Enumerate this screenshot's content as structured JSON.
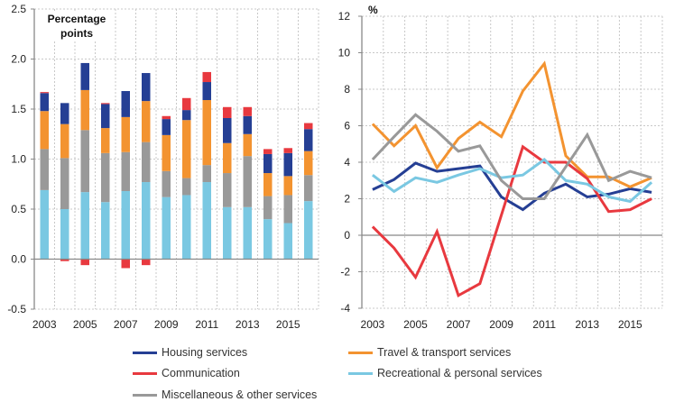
{
  "chart_data": [
    {
      "type": "bar",
      "stacked": true,
      "title": "",
      "unit_label": "Percentage points",
      "xlabel": "",
      "ylabel": "Percentage points",
      "ylim": [
        -0.5,
        2.5
      ],
      "yticks": [
        "2.5",
        "2.0",
        "1.5",
        "1.0",
        "0.5",
        "0.0",
        "-0.5"
      ],
      "ytick_values": [
        2.5,
        2.0,
        1.5,
        1.0,
        0.5,
        0.0,
        -0.5
      ],
      "categories": [
        "2003",
        "2004",
        "2005",
        "2006",
        "2007",
        "2008",
        "2009",
        "2010",
        "2011",
        "2012",
        "2013",
        "2014",
        "2015",
        "2016"
      ],
      "xtick_labels": [
        "2003",
        "2005",
        "2007",
        "2009",
        "2011",
        "2013",
        "2015"
      ],
      "grid": true,
      "series": [
        {
          "name": "Recreational & personal services",
          "color": "#7ac8e2",
          "values": [
            0.69,
            0.5,
            0.67,
            0.57,
            0.68,
            0.77,
            0.62,
            0.64,
            0.77,
            0.52,
            0.52,
            0.4,
            0.36,
            0.58
          ]
        },
        {
          "name": "Miscellaneous & other services",
          "color": "#999999",
          "values": [
            0.41,
            0.51,
            0.62,
            0.49,
            0.39,
            0.4,
            0.26,
            0.17,
            0.17,
            0.34,
            0.51,
            0.23,
            0.28,
            0.26
          ]
        },
        {
          "name": "Travel & transport services",
          "color": "#f39330",
          "values": [
            0.38,
            0.34,
            0.4,
            0.25,
            0.35,
            0.41,
            0.36,
            0.58,
            0.65,
            0.3,
            0.22,
            0.23,
            0.19,
            0.24
          ]
        },
        {
          "name": "Housing services",
          "color": "#253f94",
          "values": [
            0.18,
            0.21,
            0.27,
            0.24,
            0.26,
            0.28,
            0.16,
            0.1,
            0.18,
            0.25,
            0.18,
            0.19,
            0.23,
            0.22
          ]
        },
        {
          "name": "Communication",
          "color": "#e8393f",
          "values": [
            0.01,
            -0.02,
            -0.06,
            0.01,
            -0.09,
            -0.06,
            0.03,
            0.12,
            0.1,
            0.11,
            0.09,
            0.05,
            0.05,
            0.06
          ]
        }
      ]
    },
    {
      "type": "line",
      "title": "",
      "unit_label": "%",
      "xlabel": "",
      "ylabel": "%",
      "ylim": [
        -4,
        12
      ],
      "yticks": [
        "12",
        "10",
        "8",
        "6",
        "4",
        "2",
        "0",
        "-2",
        "-4"
      ],
      "ytick_values": [
        12,
        10,
        8,
        6,
        4,
        2,
        0,
        -2,
        -4
      ],
      "x": [
        "2003",
        "2004",
        "2005",
        "2006",
        "2007",
        "2008",
        "2009",
        "2010",
        "2011",
        "2012",
        "2013",
        "2014",
        "2015",
        "2016"
      ],
      "xtick_labels": [
        "2003",
        "2005",
        "2007",
        "2009",
        "2011",
        "2013",
        "2015"
      ],
      "grid": true,
      "series": [
        {
          "name": "Housing services",
          "color": "#253f94",
          "values": [
            2.5,
            3.05,
            3.95,
            3.5,
            3.65,
            3.8,
            2.1,
            1.4,
            2.3,
            2.8,
            2.1,
            2.25,
            2.55,
            2.35
          ]
        },
        {
          "name": "Travel & transport services",
          "color": "#f39330",
          "values": [
            6.1,
            4.9,
            6.0,
            3.7,
            5.3,
            6.2,
            5.4,
            7.9,
            9.4,
            4.35,
            3.2,
            3.2,
            2.65,
            3.15
          ]
        },
        {
          "name": "Communication",
          "color": "#e8393f",
          "values": [
            0.47,
            -0.7,
            -2.3,
            0.2,
            -3.3,
            -2.65,
            1.1,
            4.85,
            4.0,
            4.0,
            3.1,
            1.3,
            1.4,
            2.0
          ]
        },
        {
          "name": "Recreational & personal services",
          "color": "#7ac8e2",
          "values": [
            3.3,
            2.4,
            3.15,
            2.9,
            3.3,
            3.65,
            3.15,
            3.3,
            4.15,
            3.0,
            2.8,
            2.1,
            1.85,
            2.9
          ]
        },
        {
          "name": "Miscellaneous & other services",
          "color": "#999999",
          "values": [
            4.15,
            5.4,
            6.6,
            5.7,
            4.6,
            4.9,
            3.0,
            2.0,
            2.0,
            3.75,
            5.5,
            3.0,
            3.5,
            3.15
          ]
        }
      ]
    }
  ],
  "legend": {
    "placement": "bottom",
    "items": [
      {
        "label": "Housing services",
        "color": "#253f94"
      },
      {
        "label": "Travel & transport services",
        "color": "#f39330"
      },
      {
        "label": "Communication",
        "color": "#e8393f"
      },
      {
        "label": "Recreational & personal services",
        "color": "#7ac8e2"
      },
      {
        "label": "Miscellaneous & other services",
        "color": "#999999"
      }
    ]
  }
}
